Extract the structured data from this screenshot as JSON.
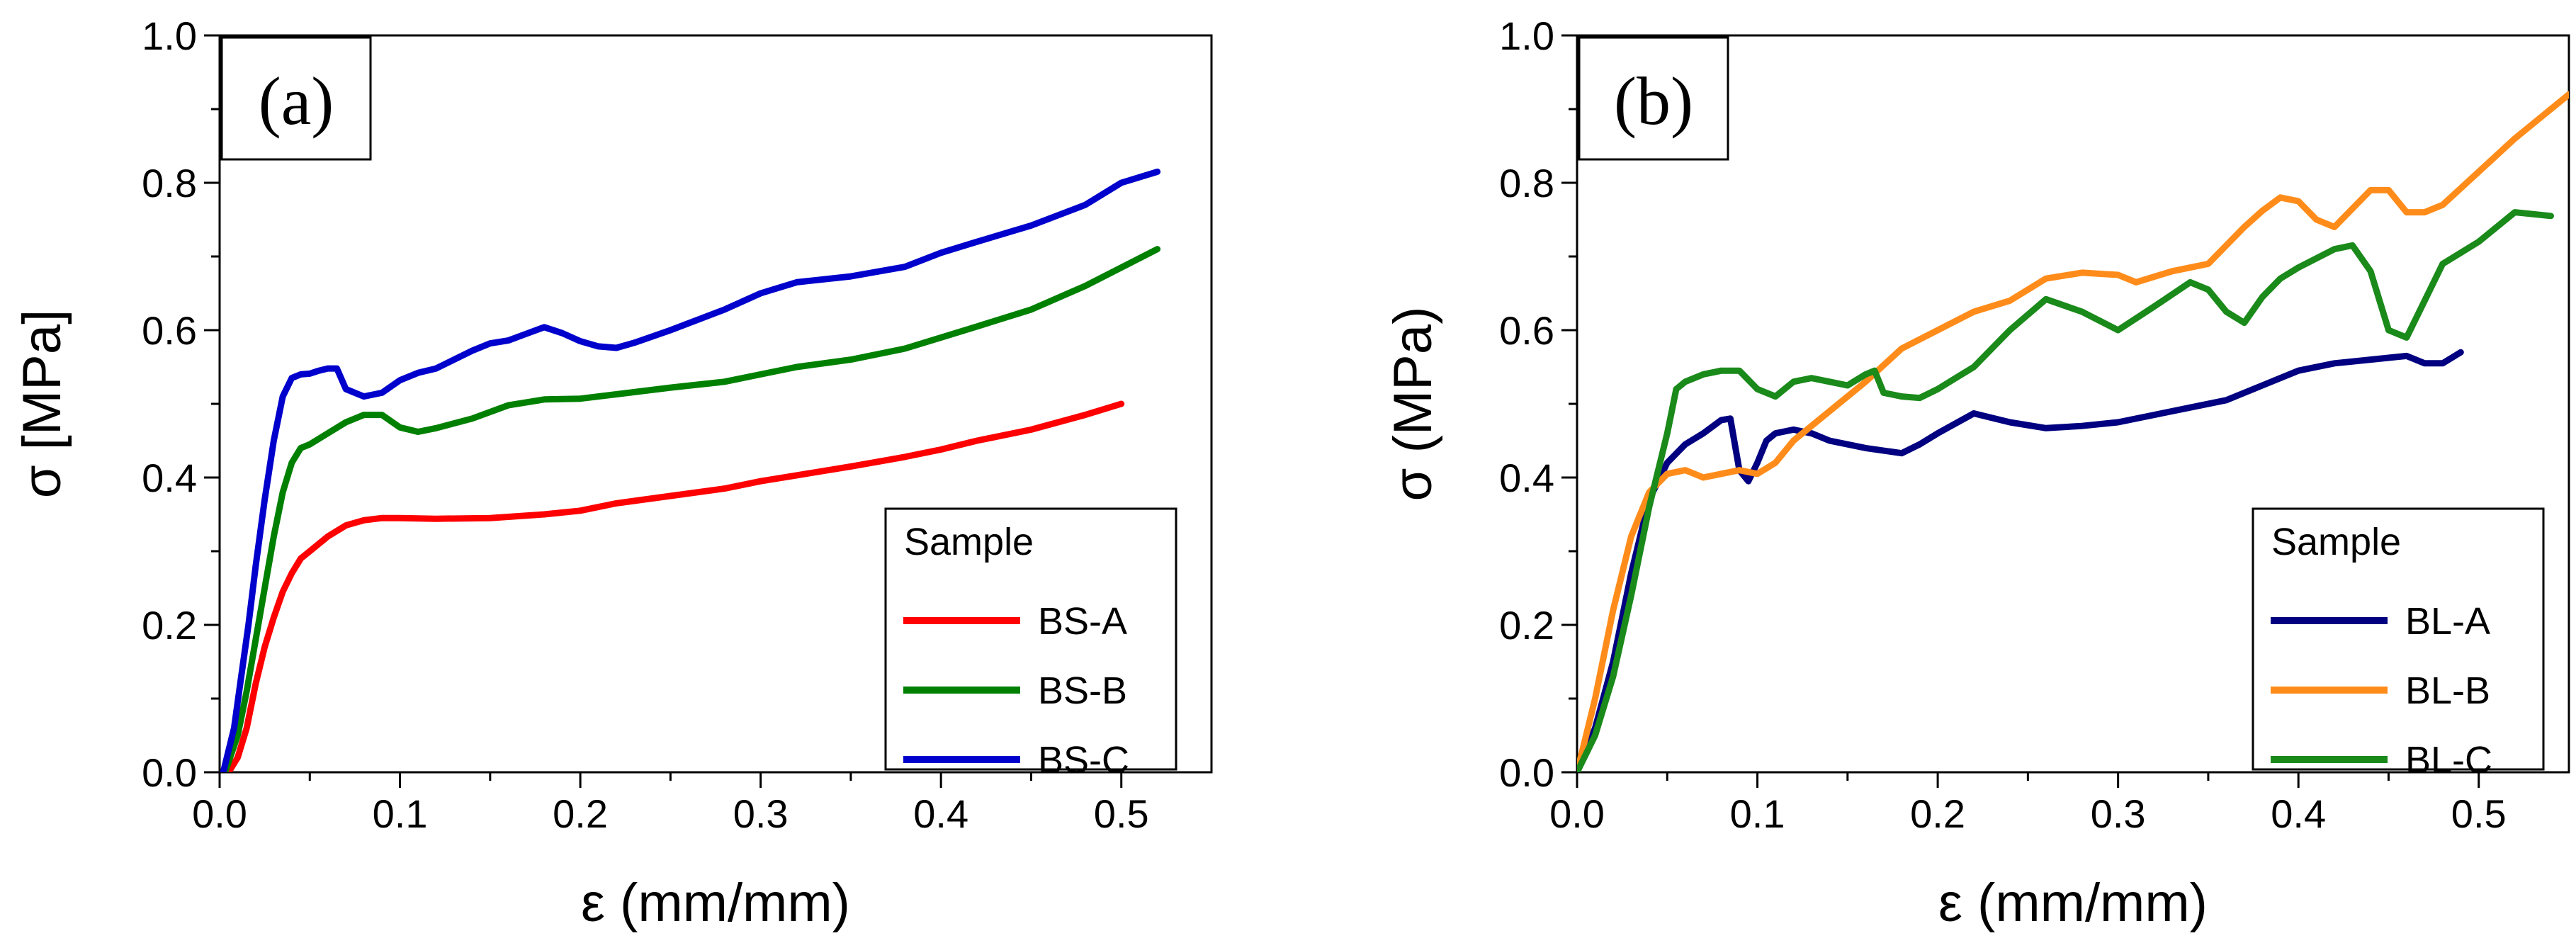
{
  "chart_data": [
    {
      "type": "line",
      "panel_label": "(a)",
      "xlabel": "ε (mm/mm)",
      "ylabel": "σ [MPa]",
      "xlim": [
        0.0,
        0.55
      ],
      "ylim": [
        0.0,
        1.0
      ],
      "xticks": [
        "0.0",
        "0.1",
        "0.2",
        "0.3",
        "0.4",
        "0.5"
      ],
      "yticks": [
        "0.0",
        "0.2",
        "0.4",
        "0.6",
        "0.8",
        "1.0"
      ],
      "legend": {
        "title": "Sample",
        "position": "bottom-right"
      },
      "series": [
        {
          "name": "BS-A",
          "color": "#ff0000",
          "x": [
            0.005,
            0.01,
            0.015,
            0.02,
            0.025,
            0.03,
            0.035,
            0.04,
            0.045,
            0.05,
            0.06,
            0.07,
            0.08,
            0.09,
            0.1,
            0.12,
            0.15,
            0.18,
            0.2,
            0.22,
            0.25,
            0.28,
            0.3,
            0.32,
            0.35,
            0.38,
            0.4,
            0.42,
            0.45,
            0.48,
            0.5
          ],
          "y": [
            0.0,
            0.02,
            0.06,
            0.12,
            0.17,
            0.21,
            0.245,
            0.27,
            0.29,
            0.3,
            0.32,
            0.335,
            0.342,
            0.345,
            0.345,
            0.344,
            0.345,
            0.35,
            0.355,
            0.365,
            0.375,
            0.385,
            0.395,
            0.403,
            0.415,
            0.428,
            0.438,
            0.45,
            0.465,
            0.485,
            0.5
          ]
        },
        {
          "name": "BS-B",
          "color": "#008000",
          "x": [
            0.003,
            0.01,
            0.015,
            0.02,
            0.025,
            0.03,
            0.035,
            0.04,
            0.045,
            0.05,
            0.06,
            0.07,
            0.08,
            0.09,
            0.1,
            0.11,
            0.12,
            0.14,
            0.16,
            0.18,
            0.2,
            0.22,
            0.25,
            0.28,
            0.3,
            0.32,
            0.35,
            0.38,
            0.4,
            0.42,
            0.45,
            0.48,
            0.5,
            0.52
          ],
          "y": [
            0.0,
            0.05,
            0.11,
            0.18,
            0.25,
            0.32,
            0.38,
            0.42,
            0.44,
            0.445,
            0.46,
            0.475,
            0.485,
            0.485,
            0.468,
            0.462,
            0.467,
            0.48,
            0.498,
            0.506,
            0.507,
            0.513,
            0.522,
            0.53,
            0.54,
            0.55,
            0.56,
            0.575,
            0.59,
            0.605,
            0.628,
            0.66,
            0.685,
            0.71
          ]
        },
        {
          "name": "BS-C",
          "color": "#0000cd",
          "x": [
            0.002,
            0.008,
            0.012,
            0.016,
            0.02,
            0.025,
            0.03,
            0.035,
            0.04,
            0.045,
            0.05,
            0.055,
            0.06,
            0.065,
            0.07,
            0.08,
            0.09,
            0.1,
            0.11,
            0.12,
            0.13,
            0.14,
            0.15,
            0.16,
            0.17,
            0.18,
            0.19,
            0.2,
            0.21,
            0.22,
            0.23,
            0.25,
            0.28,
            0.3,
            0.32,
            0.35,
            0.38,
            0.4,
            0.42,
            0.45,
            0.48,
            0.5,
            0.52
          ],
          "y": [
            0.0,
            0.06,
            0.13,
            0.2,
            0.28,
            0.37,
            0.45,
            0.51,
            0.535,
            0.54,
            0.541,
            0.545,
            0.548,
            0.548,
            0.52,
            0.51,
            0.515,
            0.532,
            0.542,
            0.548,
            0.56,
            0.572,
            0.582,
            0.586,
            0.595,
            0.604,
            0.596,
            0.585,
            0.578,
            0.576,
            0.583,
            0.6,
            0.628,
            0.65,
            0.665,
            0.673,
            0.686,
            0.705,
            0.72,
            0.742,
            0.77,
            0.8,
            0.815
          ]
        }
      ]
    },
    {
      "type": "line",
      "panel_label": "(b)",
      "xlabel": "ε (mm/mm)",
      "ylabel": "σ (MPa)",
      "xlim": [
        0.0,
        0.55
      ],
      "ylim": [
        0.0,
        1.0
      ],
      "xticks": [
        "0.0",
        "0.1",
        "0.2",
        "0.3",
        "0.4",
        "0.5"
      ],
      "yticks": [
        "0.0",
        "0.2",
        "0.4",
        "0.6",
        "0.8",
        "1.0"
      ],
      "legend": {
        "title": "Sample",
        "position": "bottom-right"
      },
      "series": [
        {
          "name": "BL-A",
          "color": "#000080",
          "x": [
            0.0,
            0.01,
            0.02,
            0.03,
            0.04,
            0.05,
            0.06,
            0.07,
            0.08,
            0.085,
            0.09,
            0.095,
            0.1,
            0.105,
            0.11,
            0.12,
            0.13,
            0.14,
            0.16,
            0.18,
            0.19,
            0.2,
            0.22,
            0.24,
            0.26,
            0.28,
            0.3,
            0.32,
            0.34,
            0.36,
            0.38,
            0.4,
            0.42,
            0.44,
            0.46,
            0.47,
            0.48,
            0.49
          ],
          "y": [
            0.0,
            0.06,
            0.15,
            0.27,
            0.37,
            0.42,
            0.445,
            0.46,
            0.478,
            0.48,
            0.41,
            0.395,
            0.42,
            0.45,
            0.46,
            0.465,
            0.46,
            0.45,
            0.44,
            0.433,
            0.445,
            0.46,
            0.487,
            0.475,
            0.467,
            0.47,
            0.475,
            0.485,
            0.495,
            0.505,
            0.525,
            0.545,
            0.555,
            0.56,
            0.565,
            0.555,
            0.555,
            0.57
          ]
        },
        {
          "name": "BL-B",
          "color": "#ff8c1a",
          "x": [
            0.0,
            0.01,
            0.02,
            0.03,
            0.04,
            0.05,
            0.06,
            0.07,
            0.08,
            0.09,
            0.1,
            0.11,
            0.12,
            0.14,
            0.16,
            0.18,
            0.2,
            0.22,
            0.24,
            0.26,
            0.28,
            0.3,
            0.31,
            0.33,
            0.35,
            0.37,
            0.38,
            0.39,
            0.4,
            0.41,
            0.42,
            0.43,
            0.44,
            0.45,
            0.46,
            0.47,
            0.48,
            0.5,
            0.52,
            0.55
          ],
          "y": [
            0.0,
            0.1,
            0.22,
            0.32,
            0.38,
            0.405,
            0.41,
            0.4,
            0.405,
            0.41,
            0.405,
            0.42,
            0.45,
            0.49,
            0.53,
            0.575,
            0.6,
            0.625,
            0.64,
            0.67,
            0.678,
            0.675,
            0.665,
            0.68,
            0.69,
            0.74,
            0.762,
            0.78,
            0.775,
            0.75,
            0.74,
            0.765,
            0.79,
            0.79,
            0.76,
            0.76,
            0.77,
            0.815,
            0.86,
            0.92
          ]
        },
        {
          "name": "BL-C",
          "color": "#1a8a1a",
          "x": [
            0.0,
            0.01,
            0.02,
            0.03,
            0.04,
            0.05,
            0.055,
            0.06,
            0.07,
            0.08,
            0.09,
            0.1,
            0.11,
            0.12,
            0.13,
            0.14,
            0.15,
            0.16,
            0.165,
            0.17,
            0.18,
            0.19,
            0.2,
            0.21,
            0.22,
            0.24,
            0.26,
            0.28,
            0.3,
            0.32,
            0.34,
            0.35,
            0.36,
            0.37,
            0.38,
            0.39,
            0.4,
            0.42,
            0.43,
            0.44,
            0.45,
            0.46,
            0.47,
            0.48,
            0.5,
            0.52,
            0.54
          ],
          "y": [
            0.0,
            0.05,
            0.13,
            0.24,
            0.36,
            0.46,
            0.52,
            0.53,
            0.54,
            0.545,
            0.545,
            0.52,
            0.51,
            0.53,
            0.535,
            0.53,
            0.525,
            0.54,
            0.545,
            0.515,
            0.51,
            0.508,
            0.52,
            0.535,
            0.55,
            0.6,
            0.642,
            0.625,
            0.6,
            0.632,
            0.665,
            0.655,
            0.625,
            0.61,
            0.645,
            0.67,
            0.685,
            0.71,
            0.715,
            0.68,
            0.6,
            0.59,
            0.64,
            0.69,
            0.72,
            0.76,
            0.755
          ]
        }
      ]
    }
  ]
}
